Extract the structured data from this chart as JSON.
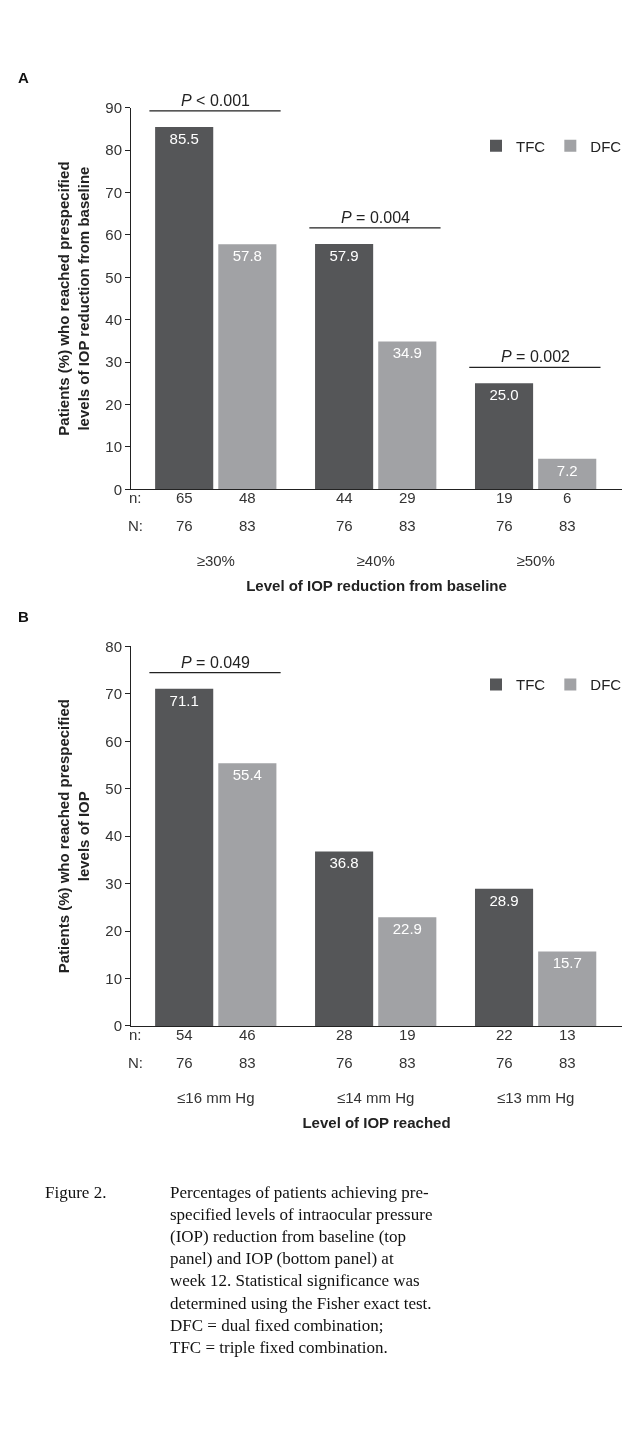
{
  "chart_data": [
    {
      "type": "bar",
      "title": "A",
      "categories": [
        "≥30%",
        "≥40%",
        "≥50%"
      ],
      "series": [
        {
          "name": "TFC",
          "color": "#555658",
          "values": [
            85.5,
            57.9,
            25.0
          ],
          "value_labels": [
            "85.5",
            "57.9",
            "25.0"
          ]
        },
        {
          "name": "DFC",
          "color": "#a1a2a5",
          "values": [
            57.8,
            34.9,
            7.2
          ],
          "value_labels": [
            "57.8",
            "34.9",
            "7.2"
          ]
        }
      ],
      "ylim": [
        0,
        90
      ],
      "yticks": [
        0,
        10,
        20,
        30,
        40,
        50,
        60,
        70,
        80,
        90
      ],
      "xlabel": "Level of IOP reduction from baseline",
      "ylabel": "Patients (%) who reached prespecified\nlevels of IOP reduction from baseline",
      "legend": "top right",
      "annotations": [
        "P < 0.001",
        "P = 0.004",
        "P = 0.002",
        "n:",
        "65",
        "48",
        "44",
        "29",
        "19",
        "6",
        "N:",
        "76",
        "83",
        "76",
        "83",
        "76",
        "83"
      ]
    },
    {
      "type": "bar",
      "title": "B",
      "categories": [
        "≤16 mm Hg",
        "≤14 mm Hg",
        "≤13 mm Hg"
      ],
      "series": [
        {
          "name": "TFC",
          "color": "#555658",
          "values": [
            71.1,
            36.8,
            28.9
          ],
          "value_labels": [
            "71.1",
            "36.8",
            "28.9"
          ]
        },
        {
          "name": "DFC",
          "color": "#a1a2a5",
          "values": [
            55.4,
            22.9,
            15.7
          ],
          "value_labels": [
            "55.4",
            "22.9",
            "15.7"
          ]
        }
      ],
      "ylim": [
        0,
        80
      ],
      "yticks": [
        0,
        10,
        20,
        30,
        40,
        50,
        60,
        70,
        80
      ],
      "xlabel": "Level of IOP reached",
      "ylabel": "Patients (%) who reached prespecified\nlevels of IOP",
      "legend": "top right",
      "annotations": [
        "P = 0.049",
        "n:",
        "54",
        "46",
        "28",
        "19",
        "22",
        "13",
        "N:",
        "76",
        "83",
        "76",
        "83",
        "76",
        "83"
      ]
    },
    {
      "type": "other",
      "annotations": [
        "Figure 2.",
        "Percentages of patients achieving pre-\nspecified levels of intraocular pressure\n(IOP) reduction from baseline (top\npanel) and IOP (bottom panel) at\nweek 12. Statistical significance was\ndetermined using the Fisher exact test.\nDFC = dual fixed combination;\nTFC = triple fixed combination."
      ]
    }
  ]
}
